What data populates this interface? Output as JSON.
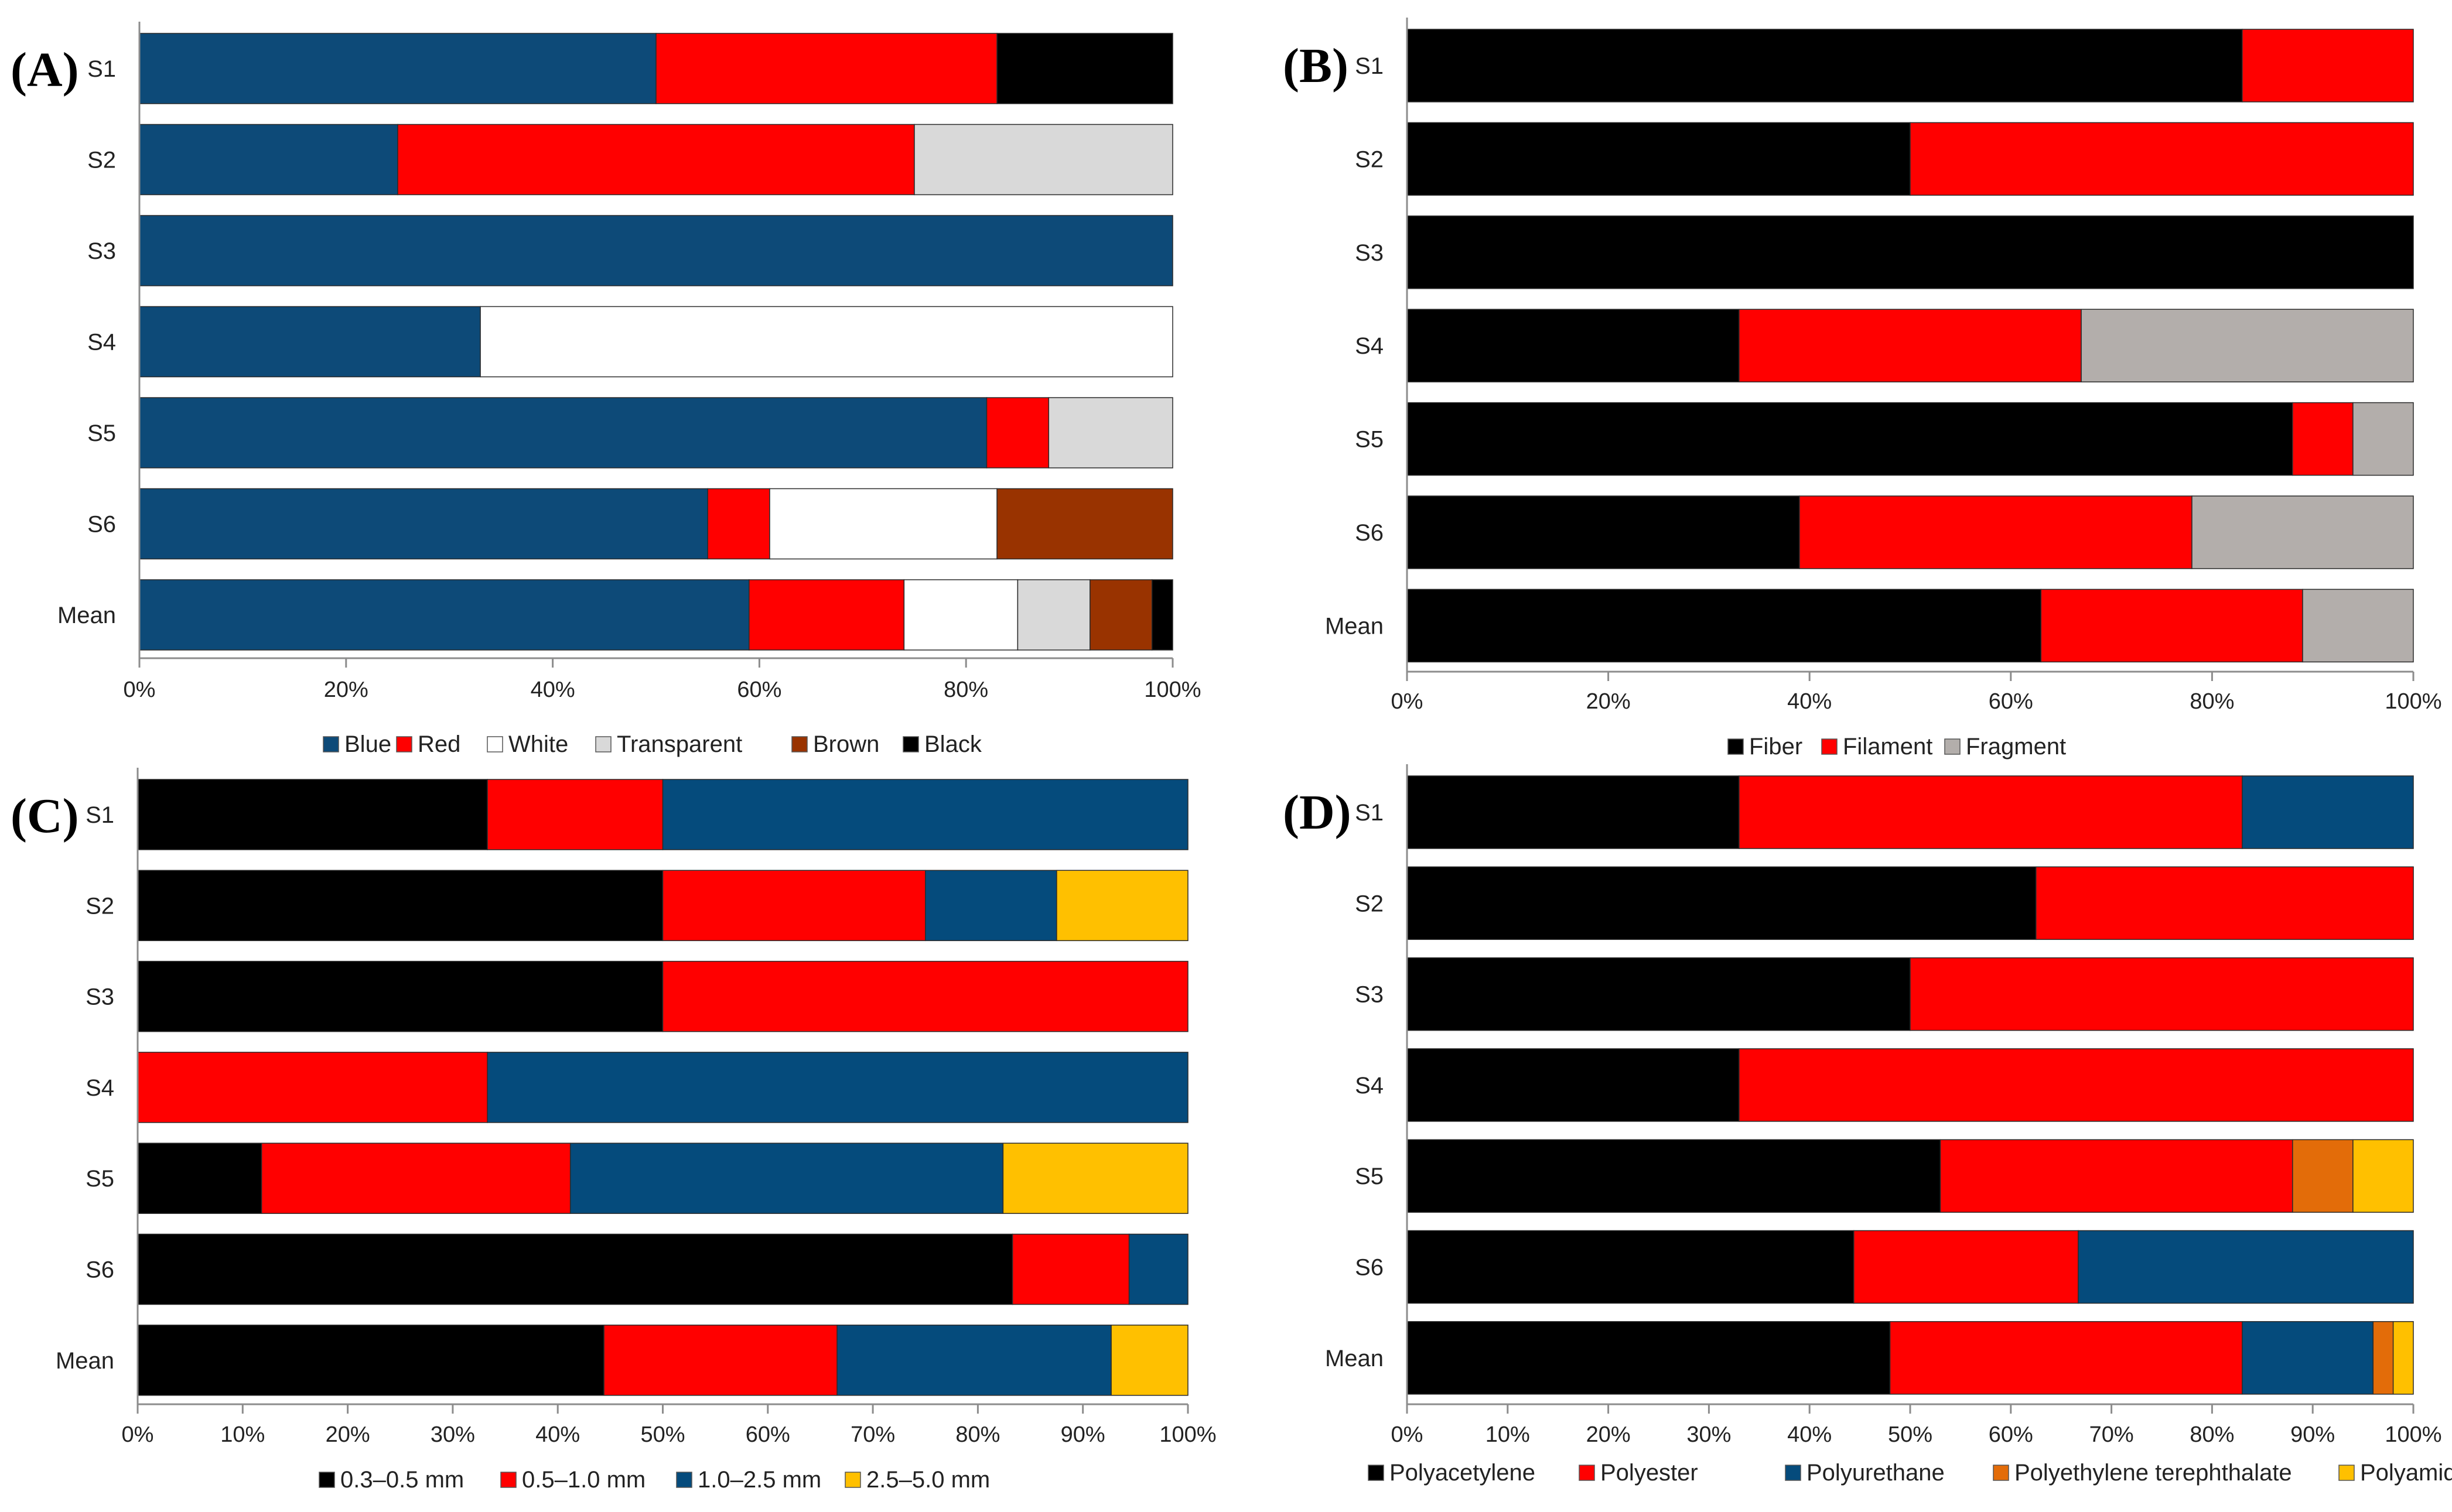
{
  "chart_data": [
    {
      "type": "bar",
      "orientation": "horizontal",
      "stacked": "percent",
      "panel_label": "(A)",
      "categories": [
        "S1",
        "S2",
        "S3",
        "S4",
        "S5",
        "S6",
        "Mean"
      ],
      "xlim": [
        0,
        100
      ],
      "xticks": [
        "0%",
        "20%",
        "40%",
        "60%",
        "80%",
        "100%"
      ],
      "grid": false,
      "legend_position": "bottom",
      "series": [
        {
          "name": "Blue",
          "color": "#0d4a78",
          "values": [
            50,
            25,
            100,
            33,
            82,
            55,
            59
          ]
        },
        {
          "name": "Red",
          "color": "#ff0000",
          "values": [
            33,
            50,
            0,
            0,
            6,
            6,
            15
          ]
        },
        {
          "name": "White",
          "color": "#ffffff",
          "values": [
            0,
            0,
            0,
            67,
            0,
            22,
            11
          ]
        },
        {
          "name": "Transparent",
          "color": "#d9d9d9",
          "values": [
            0,
            25,
            0,
            0,
            12,
            0,
            7
          ]
        },
        {
          "name": "Brown",
          "color": "#993300",
          "values": [
            0,
            0,
            0,
            0,
            0,
            17,
            6
          ]
        },
        {
          "name": "Black",
          "color": "#000000",
          "values": [
            17,
            0,
            0,
            0,
            0,
            0,
            2
          ]
        }
      ]
    },
    {
      "type": "bar",
      "orientation": "horizontal",
      "stacked": "percent",
      "panel_label": "(B)",
      "categories": [
        "S1",
        "S2",
        "S3",
        "S4",
        "S5",
        "S6",
        "Mean"
      ],
      "xlim": [
        0,
        100
      ],
      "xticks": [
        "0%",
        "20%",
        "40%",
        "60%",
        "80%",
        "100%"
      ],
      "grid": false,
      "legend_position": "bottom",
      "series": [
        {
          "name": "Fiber",
          "color": "#000000",
          "values": [
            83,
            50,
            100,
            33,
            88,
            39,
            63
          ]
        },
        {
          "name": "Filament",
          "color": "#ff0000",
          "values": [
            17,
            50,
            0,
            34,
            6,
            39,
            26
          ]
        },
        {
          "name": "Fragment",
          "color": "#b3aeab",
          "values": [
            0,
            0,
            0,
            33,
            6,
            22,
            11
          ]
        }
      ]
    },
    {
      "type": "bar",
      "orientation": "horizontal",
      "stacked": "percent",
      "panel_label": "(C)",
      "categories": [
        "S1",
        "S2",
        "S3",
        "S4",
        "S5",
        "S6",
        "Mean"
      ],
      "xlim": [
        0,
        100
      ],
      "xticks": [
        "0%",
        "10%",
        "20%",
        "30%",
        "40%",
        "50%",
        "60%",
        "70%",
        "80%",
        "90%",
        "100%"
      ],
      "grid": false,
      "legend_position": "bottom",
      "series": [
        {
          "name": "0.3–0.5 mm",
          "color": "#000000",
          "values": [
            33.3,
            50,
            50,
            0,
            11.8,
            83.3,
            44.4
          ]
        },
        {
          "name": "0.5–1.0 mm",
          "color": "#ff0000",
          "values": [
            16.7,
            25,
            50,
            33.3,
            29.4,
            11.1,
            22.2
          ]
        },
        {
          "name": "1.0–2.5 mm",
          "color": "#054b7c",
          "values": [
            50,
            12.5,
            0,
            66.7,
            41.2,
            5.6,
            26.1
          ]
        },
        {
          "name": "2.5–5.0 mm",
          "color": "#ffc000",
          "values": [
            0,
            12.5,
            0,
            0,
            17.6,
            0,
            7.3
          ]
        }
      ]
    },
    {
      "type": "bar",
      "orientation": "horizontal",
      "stacked": "percent",
      "panel_label": "(D)",
      "categories": [
        "S1",
        "S2",
        "S3",
        "S4",
        "S5",
        "S6",
        "Mean"
      ],
      "xlim": [
        0,
        100
      ],
      "xticks": [
        "0%",
        "10%",
        "20%",
        "30%",
        "40%",
        "50%",
        "60%",
        "70%",
        "80%",
        "90%",
        "100%"
      ],
      "grid": false,
      "legend_position": "bottom",
      "series": [
        {
          "name": "Polyacetylene",
          "color": "#000000",
          "values": [
            33,
            62.5,
            50,
            33,
            53,
            44.4,
            48
          ]
        },
        {
          "name": "Polyester",
          "color": "#ff0000",
          "values": [
            50,
            37.5,
            50,
            67,
            35,
            22.3,
            35
          ]
        },
        {
          "name": "Polyurethane",
          "color": "#054b7c",
          "values": [
            17,
            0,
            0,
            0,
            0,
            33.3,
            13
          ]
        },
        {
          "name": "Polyethylene terephthalate",
          "color": "#e36c09",
          "values": [
            0,
            0,
            0,
            0,
            6,
            0,
            2
          ]
        },
        {
          "name": "Polyamide",
          "color": "#ffc000",
          "values": [
            0,
            0,
            0,
            0,
            6,
            0,
            2
          ]
        }
      ]
    }
  ]
}
